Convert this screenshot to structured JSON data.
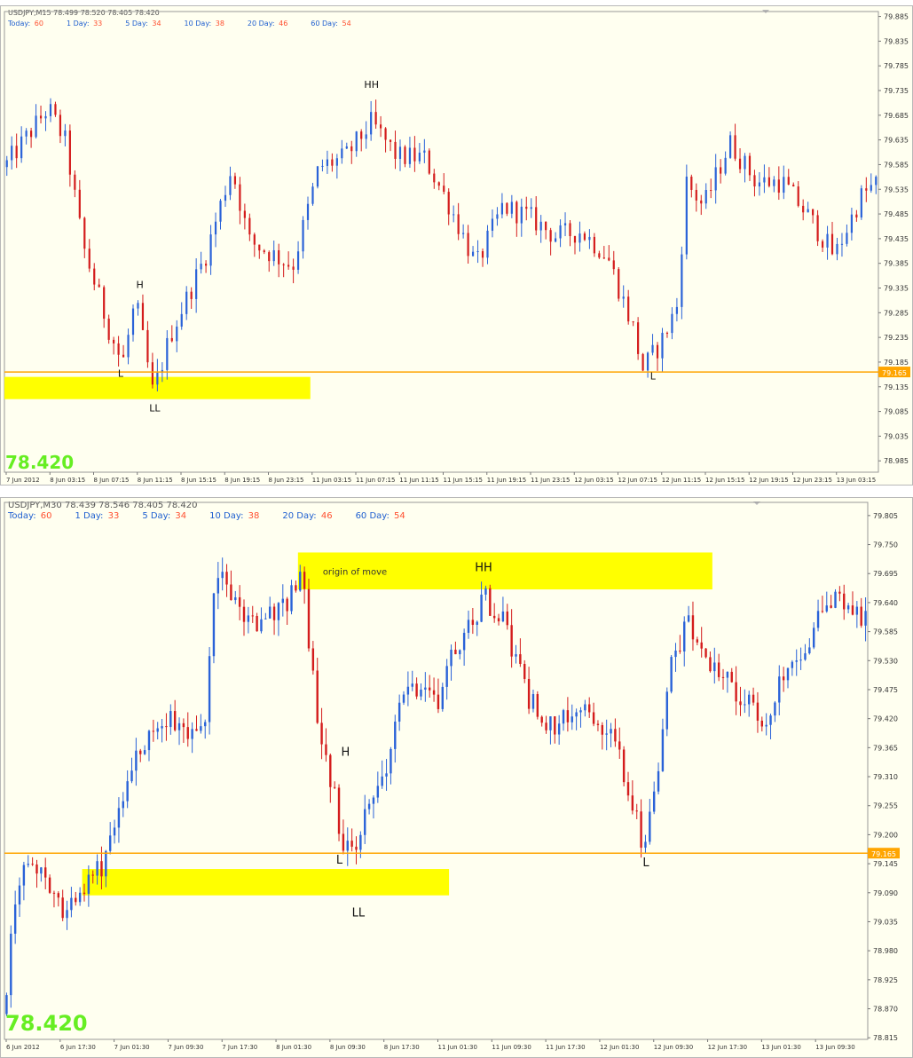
{
  "chart_data": [
    {
      "type": "candlestick",
      "header": "USDJPY,M15  78.499 78.520 78.405 78.420",
      "stats": [
        {
          "label": "Today:",
          "value": "60"
        },
        {
          "label": "1 Day:",
          "value": "33"
        },
        {
          "label": "5 Day:",
          "value": "34"
        },
        {
          "label": "10 Day:",
          "value": "38"
        },
        {
          "label": "20 Day:",
          "value": "46"
        },
        {
          "label": "60 Day:",
          "value": "54"
        }
      ],
      "big_price": "78.420",
      "ylim": [
        78.962,
        79.895
      ],
      "y_ticks": [
        "79.885",
        "79.835",
        "79.785",
        "79.735",
        "79.685",
        "79.635",
        "79.585",
        "79.535",
        "79.485",
        "79.435",
        "79.385",
        "79.335",
        "79.285",
        "79.235",
        "79.185",
        "79.135",
        "79.085",
        "79.035",
        "78.985"
      ],
      "x_ticks": [
        "7 Jun 2012",
        "8 Jun 03:15",
        "8 Jun 07:15",
        "8 Jun 11:15",
        "8 Jun 15:15",
        "8 Jun 19:15",
        "8 Jun 23:15",
        "11 Jun 03:15",
        "11 Jun 07:15",
        "11 Jun 11:15",
        "11 Jun 15:15",
        "11 Jun 19:15",
        "11 Jun 23:15",
        "12 Jun 03:15",
        "12 Jun 07:15",
        "12 Jun 11:15",
        "12 Jun 15:15",
        "12 Jun 19:15",
        "12 Jun 23:15",
        "13 Jun 03:15"
      ],
      "hline": {
        "value": 79.165,
        "label": "79.165",
        "color": "#ffa500"
      },
      "zones": [
        {
          "x0": 0,
          "x1": 0.35,
          "y0": 79.155,
          "y1": 79.11,
          "label": ""
        }
      ],
      "annotations": [
        {
          "text": "HH",
          "x": 0.42,
          "price": 79.74
        },
        {
          "text": "H",
          "x": 0.155,
          "price": 79.335
        },
        {
          "text": "L",
          "x": 0.133,
          "price": 79.155
        },
        {
          "text": "LL",
          "x": 0.172,
          "price": 79.085
        },
        {
          "text": "L",
          "x": 0.742,
          "price": 79.15
        }
      ],
      "colors": {
        "up": "#2a62d8",
        "down": "#d41c1c"
      },
      "waypoints": [
        [
          0,
          79.58
        ],
        [
          0.05,
          79.7
        ],
        [
          0.07,
          79.63
        ],
        [
          0.09,
          79.42
        ],
        [
          0.12,
          79.25
        ],
        [
          0.135,
          79.18
        ],
        [
          0.15,
          79.31
        ],
        [
          0.17,
          79.12
        ],
        [
          0.19,
          79.24
        ],
        [
          0.23,
          79.4
        ],
        [
          0.26,
          79.58
        ],
        [
          0.28,
          79.43
        ],
        [
          0.33,
          79.38
        ],
        [
          0.36,
          79.58
        ],
        [
          0.39,
          79.6
        ],
        [
          0.42,
          79.67
        ],
        [
          0.45,
          79.6
        ],
        [
          0.48,
          79.6
        ],
        [
          0.51,
          79.5
        ],
        [
          0.54,
          79.38
        ],
        [
          0.57,
          79.5
        ],
        [
          0.6,
          79.48
        ],
        [
          0.63,
          79.44
        ],
        [
          0.66,
          79.45
        ],
        [
          0.69,
          79.4
        ],
        [
          0.72,
          79.25
        ],
        [
          0.73,
          79.17
        ],
        [
          0.75,
          79.22
        ],
        [
          0.77,
          79.3
        ],
        [
          0.78,
          79.55
        ],
        [
          0.8,
          79.5
        ],
        [
          0.83,
          79.63
        ],
        [
          0.86,
          79.55
        ],
        [
          0.89,
          79.55
        ],
        [
          0.92,
          79.48
        ],
        [
          0.95,
          79.4
        ],
        [
          0.98,
          79.52
        ],
        [
          1.02,
          79.58
        ],
        [
          1.06,
          79.65
        ],
        [
          1.09,
          79.6
        ]
      ]
    },
    {
      "type": "candlestick",
      "header": "USDJPY,M30  78.439 78.546 78.405 78.420",
      "stats": [
        {
          "label": "Today:",
          "value": "60"
        },
        {
          "label": "1 Day:",
          "value": "33"
        },
        {
          "label": "5 Day:",
          "value": "34"
        },
        {
          "label": "10 Day:",
          "value": "38"
        },
        {
          "label": "20 Day:",
          "value": "46"
        },
        {
          "label": "60 Day:",
          "value": "54"
        }
      ],
      "big_price": "78.420",
      "ylim": [
        78.812,
        79.83
      ],
      "y_ticks": [
        "79.805",
        "79.750",
        "79.695",
        "79.640",
        "79.585",
        "79.530",
        "79.475",
        "79.420",
        "79.365",
        "79.310",
        "79.255",
        "79.200",
        "79.145",
        "79.090",
        "79.035",
        "78.980",
        "78.925",
        "78.870",
        "78.815"
      ],
      "x_ticks": [
        "6 Jun 2012",
        "6 Jun 17:30",
        "7 Jun 01:30",
        "7 Jun 09:30",
        "7 Jun 17:30",
        "8 Jun 01:30",
        "8 Jun 09:30",
        "8 Jun 17:30",
        "11 Jun 01:30",
        "11 Jun 09:30",
        "11 Jun 17:30",
        "12 Jun 01:30",
        "12 Jun 09:30",
        "12 Jun 17:30",
        "13 Jun 01:30",
        "13 Jun 09:30"
      ],
      "hline": {
        "value": 79.165,
        "label": "79.165",
        "color": "#ffa500"
      },
      "zones": [
        {
          "x0": 0.09,
          "x1": 0.515,
          "y0": 79.135,
          "y1": 79.085,
          "label": ""
        },
        {
          "x0": 0.34,
          "x1": 0.82,
          "y0": 79.735,
          "y1": 79.665,
          "label": "origin of move"
        }
      ],
      "annotations": [
        {
          "text": "HH",
          "x": 0.555,
          "price": 79.7
        },
        {
          "text": "H",
          "x": 0.395,
          "price": 79.35
        },
        {
          "text": "L",
          "x": 0.388,
          "price": 79.145
        },
        {
          "text": "LL",
          "x": 0.41,
          "price": 79.045
        },
        {
          "text": "L",
          "x": 0.743,
          "price": 79.14
        }
      ],
      "colors": {
        "up": "#2a62d8",
        "down": "#d41c1c"
      },
      "waypoints": [
        [
          0,
          78.86
        ],
        [
          0.01,
          79.05
        ],
        [
          0.03,
          79.16
        ],
        [
          0.05,
          79.1
        ],
        [
          0.07,
          79.05
        ],
        [
          0.09,
          79.1
        ],
        [
          0.11,
          79.13
        ],
        [
          0.14,
          79.3
        ],
        [
          0.17,
          79.4
        ],
        [
          0.2,
          79.42
        ],
        [
          0.23,
          79.38
        ],
        [
          0.245,
          79.7
        ],
        [
          0.26,
          79.65
        ],
        [
          0.29,
          79.6
        ],
        [
          0.32,
          79.62
        ],
        [
          0.345,
          79.7
        ],
        [
          0.36,
          79.45
        ],
        [
          0.375,
          79.33
        ],
        [
          0.39,
          79.2
        ],
        [
          0.405,
          79.16
        ],
        [
          0.42,
          79.25
        ],
        [
          0.445,
          79.35
        ],
        [
          0.47,
          79.5
        ],
        [
          0.5,
          79.45
        ],
        [
          0.52,
          79.55
        ],
        [
          0.555,
          79.65
        ],
        [
          0.58,
          79.6
        ],
        [
          0.61,
          79.45
        ],
        [
          0.64,
          79.4
        ],
        [
          0.67,
          79.45
        ],
        [
          0.7,
          79.4
        ],
        [
          0.725,
          79.28
        ],
        [
          0.74,
          79.18
        ],
        [
          0.755,
          79.3
        ],
        [
          0.77,
          79.5
        ],
        [
          0.79,
          79.6
        ],
        [
          0.81,
          79.55
        ],
        [
          0.835,
          79.5
        ],
        [
          0.86,
          79.45
        ],
        [
          0.88,
          79.4
        ],
        [
          0.9,
          79.5
        ],
        [
          0.92,
          79.55
        ],
        [
          0.95,
          79.62
        ],
        [
          0.97,
          79.65
        ],
        [
          1.0,
          79.6
        ]
      ]
    }
  ]
}
